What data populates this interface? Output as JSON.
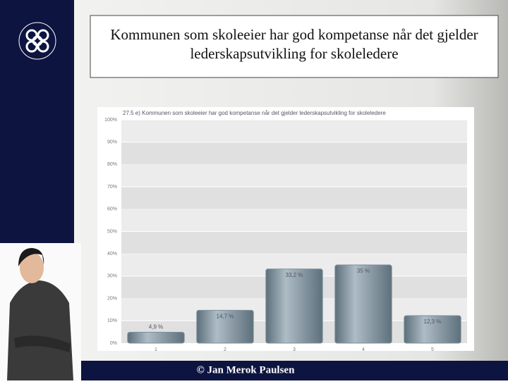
{
  "slide_title": "Kommunen som skoleeier har god kompetanse når det gjelder lederskapsutvikling for skoleledere",
  "footer": "© Jan Merok Paulsen",
  "chart_data": {
    "type": "bar",
    "title": "27.5 e) Kommunen som skoleeier har god kompetanse når det gjelder lederskapsutvikling for skoleledere",
    "categories": [
      "1",
      "2",
      "3",
      "4",
      "5"
    ],
    "values": [
      4.9,
      14.7,
      33.2,
      35,
      12.3
    ],
    "value_labels": [
      "4,9 %",
      "14,7 %",
      "33,2 %",
      "35 %",
      "12,3 %"
    ],
    "color": "#7d919e",
    "ylim": [
      0,
      100
    ],
    "yticks": [
      {
        "value": 0,
        "label": "0%"
      },
      {
        "value": 10,
        "label": "10%"
      },
      {
        "value": 20,
        "label": "20%"
      },
      {
        "value": 30,
        "label": "30%"
      },
      {
        "value": 40,
        "label": "40%"
      },
      {
        "value": 50,
        "label": "50%"
      },
      {
        "value": 60,
        "label": "60%"
      },
      {
        "value": 70,
        "label": "70%"
      },
      {
        "value": 80,
        "label": "80%"
      },
      {
        "value": 90,
        "label": "90%"
      },
      {
        "value": 100,
        "label": "100%"
      }
    ],
    "grid": true
  }
}
